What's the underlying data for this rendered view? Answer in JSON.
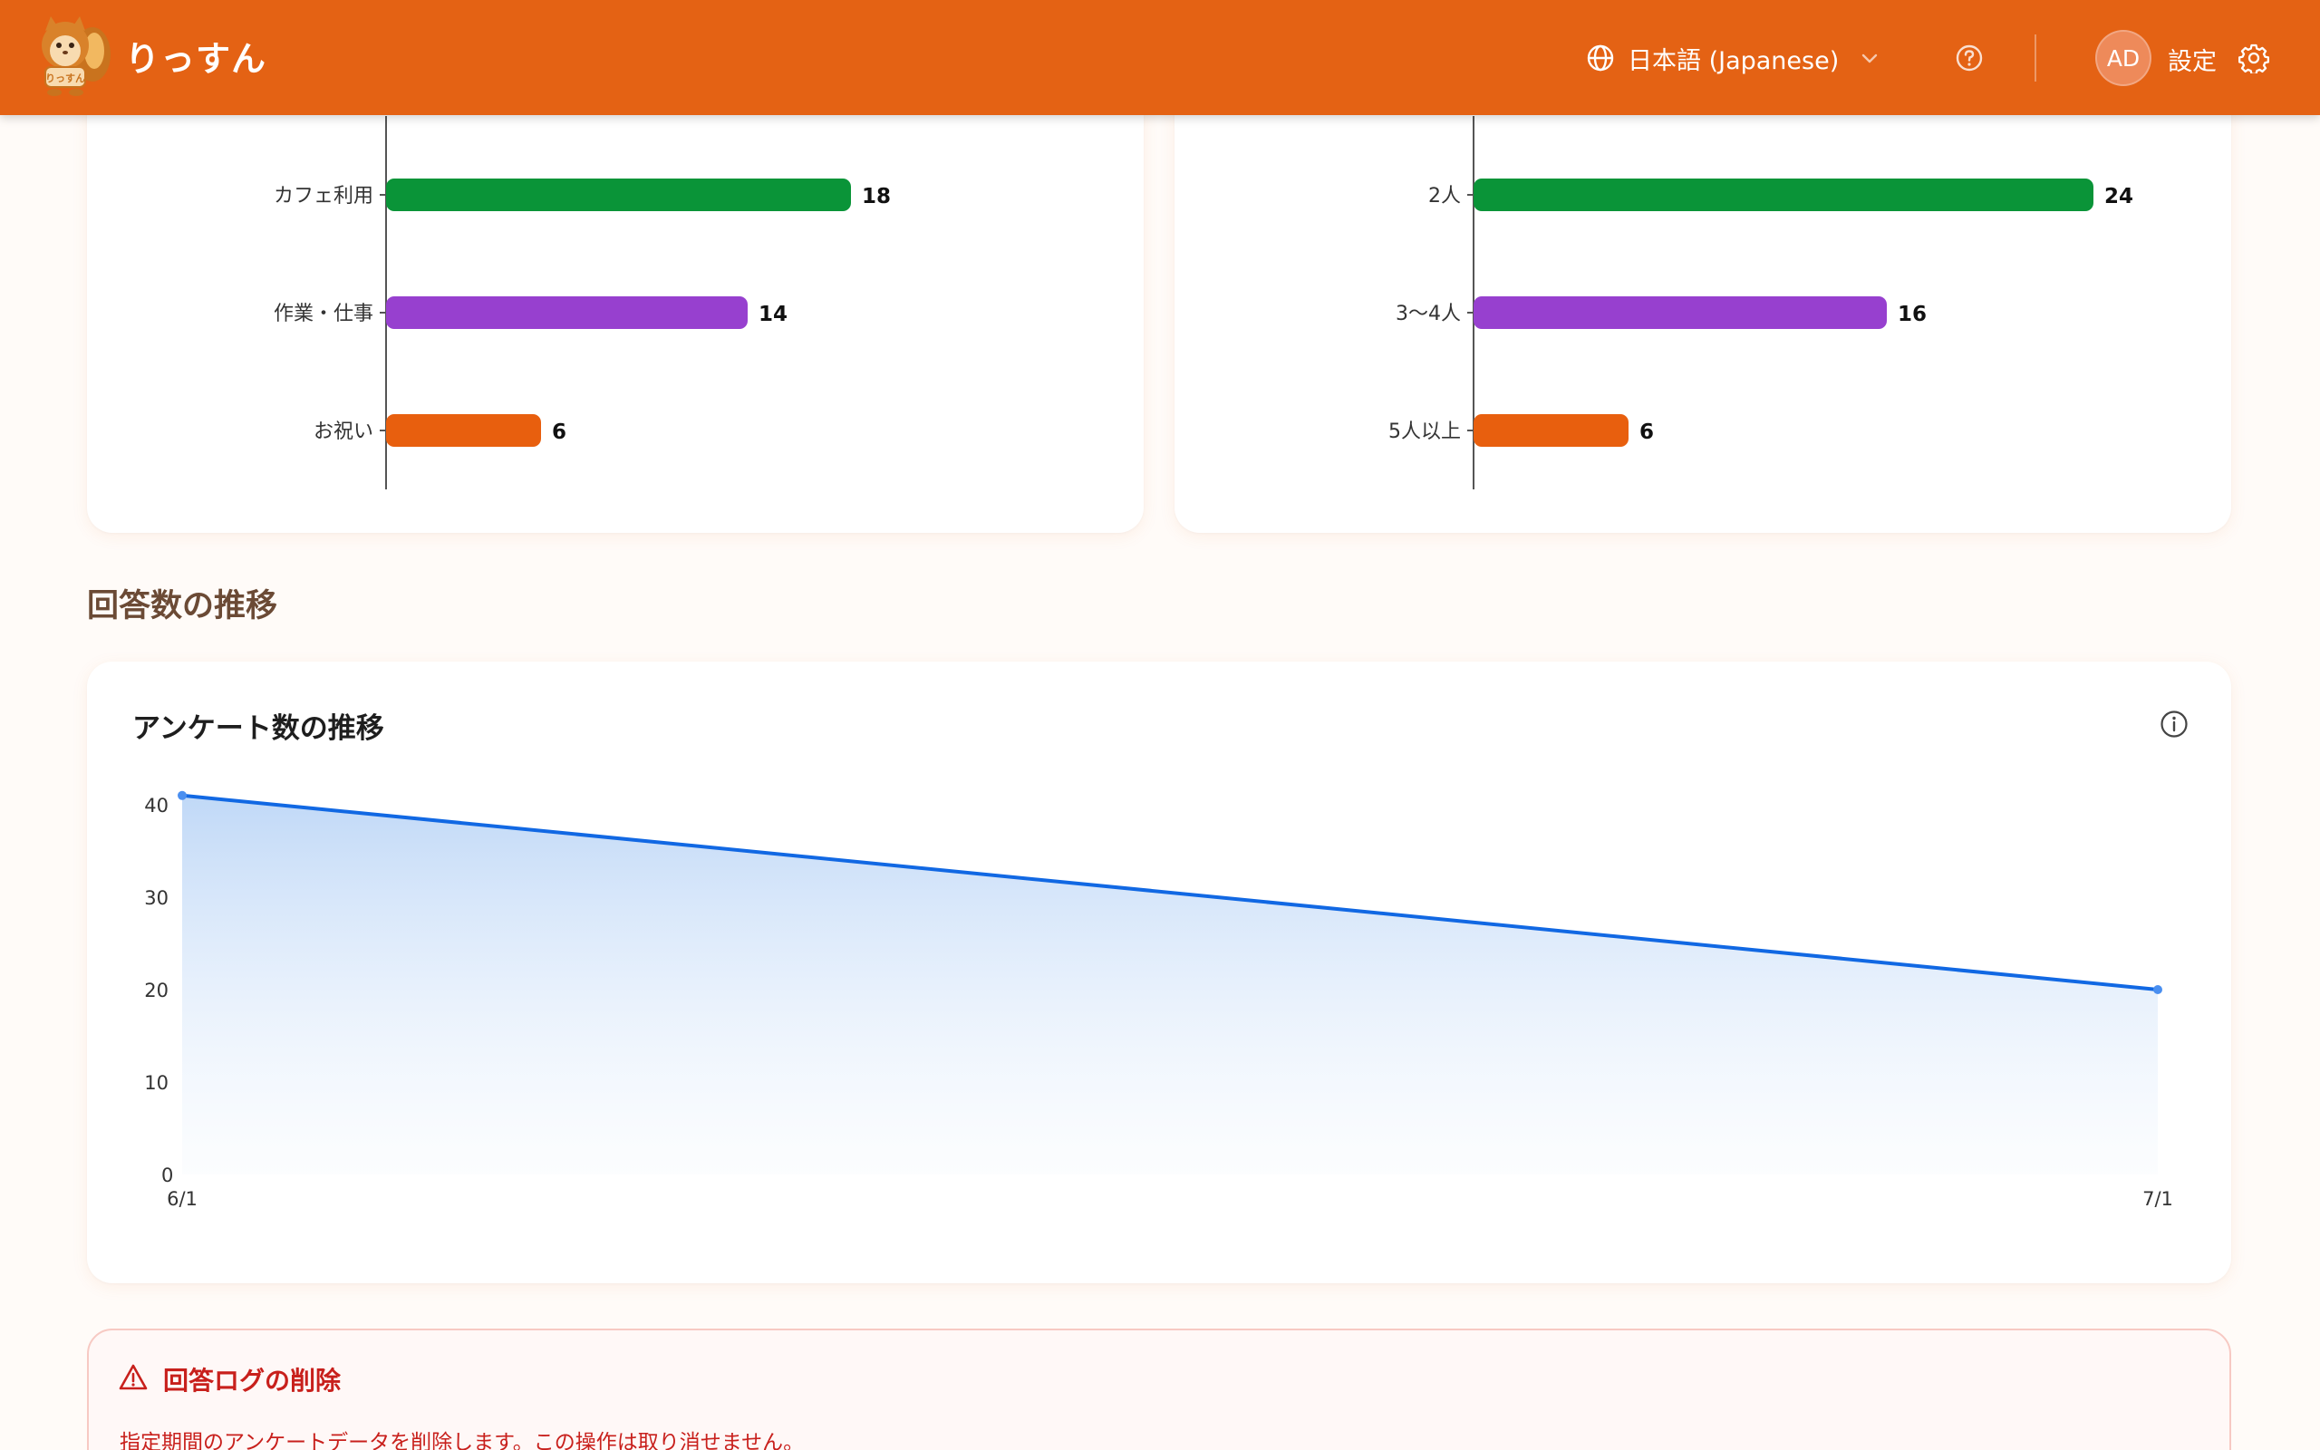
{
  "header": {
    "logo_text": "りっすん",
    "language": "日本語 (Japanese)",
    "avatar_initials": "AD",
    "settings_label": "設定",
    "brand_color": "#e46214"
  },
  "purpose_chart": {
    "type": "bar",
    "orientation": "horizontal",
    "categories": [
      "カフェ利用",
      "作業・仕事",
      "お祝い"
    ],
    "values": [
      18,
      14,
      6
    ],
    "colors": [
      "#0a9438",
      "#9740cf",
      "#e85f0e"
    ]
  },
  "party_size_chart": {
    "type": "bar",
    "orientation": "horizontal",
    "categories": [
      "2人",
      "3〜4人",
      "5人以上"
    ],
    "values": [
      24,
      16,
      6
    ],
    "colors": [
      "#0a9438",
      "#9740cf",
      "#e85f0e"
    ]
  },
  "section": {
    "title": "回答数の推移"
  },
  "trend": {
    "title": "アンケート数の推移",
    "icon": "info-icon"
  },
  "chart_data": {
    "type": "area",
    "x": [
      "6/1",
      "7/1"
    ],
    "series": [
      {
        "values": [
          41,
          20
        ]
      }
    ],
    "y_ticks": [
      0,
      10,
      20,
      30,
      40
    ],
    "line_color": "#1168e3",
    "grid": false
  },
  "danger": {
    "title": "回答ログの削除",
    "description": "指定期間のアンケートデータを削除します。この操作は取り消せません。",
    "color": "#c8201c"
  }
}
